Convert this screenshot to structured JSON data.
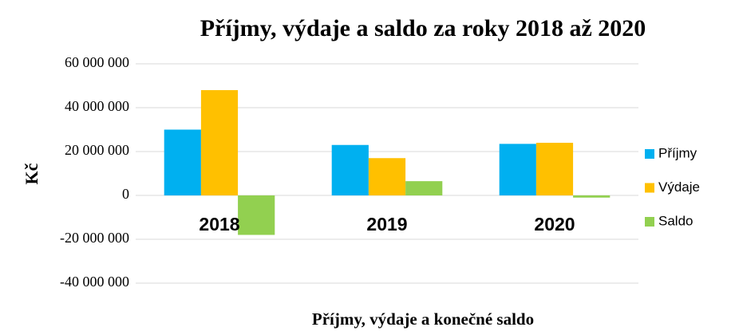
{
  "chart_data": {
    "type": "bar",
    "title": "Příjmy, výdaje a saldo za roky 2018 až 2020",
    "x_label": "Příjmy, výdaje a konečné saldo",
    "y_label": "Kč",
    "categories": [
      "2018",
      "2019",
      "2020"
    ],
    "series": [
      {
        "name": "Příjmy",
        "color": "#00b0f0",
        "values": [
          30000000,
          23000000,
          23500000
        ]
      },
      {
        "name": "Výdaje",
        "color": "#ffc000",
        "values": [
          48000000,
          17000000,
          24000000
        ]
      },
      {
        "name": "Saldo",
        "color": "#92d050",
        "values": [
          -18000000,
          6500000,
          -1000000
        ]
      }
    ],
    "ylim": [
      -40000000,
      60000000
    ],
    "yticks": [
      {
        "value": -40000000,
        "label": "-40 000 000"
      },
      {
        "value": -20000000,
        "label": "-20 000 000"
      },
      0,
      {
        "value": 20000000,
        "label": "20 000 000"
      },
      {
        "value": 40000000,
        "label": "40 000 000"
      },
      {
        "value": 60000000,
        "label": "60 000 000"
      }
    ],
    "grid": true,
    "legend": "right"
  }
}
